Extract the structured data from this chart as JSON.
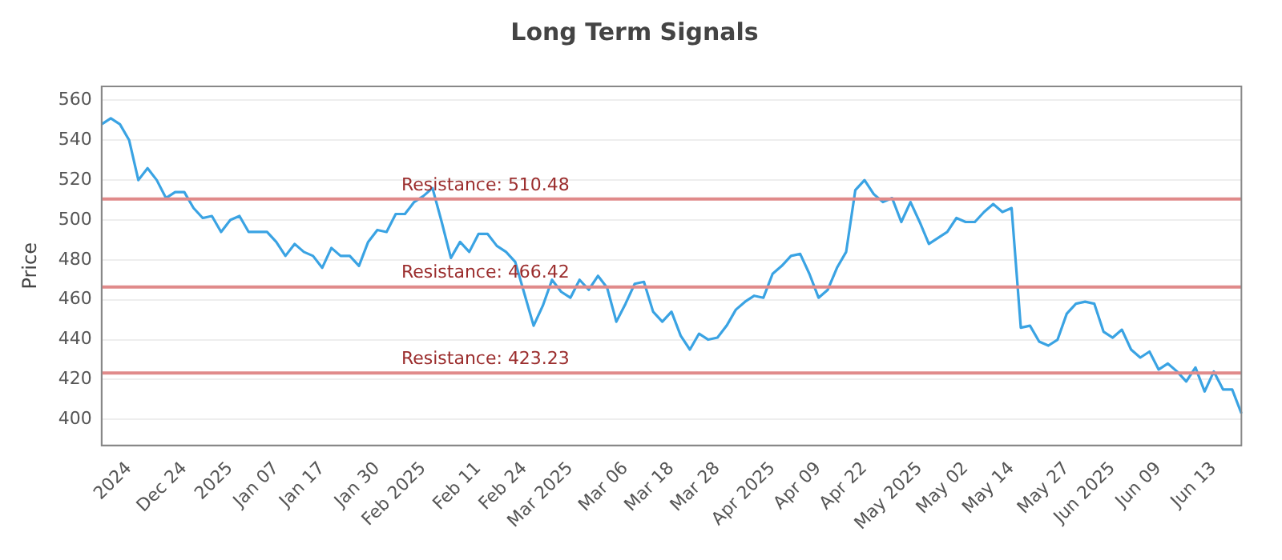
{
  "chart_data": {
    "type": "line",
    "title": "Long Term Signals",
    "ylabel": "Price",
    "categories": [
      null,
      null,
      null,
      "2024",
      null,
      null,
      null,
      null,
      null,
      "Dec 24",
      null,
      null,
      null,
      null,
      "2025",
      null,
      null,
      null,
      null,
      "Jan 07",
      null,
      null,
      null,
      null,
      "Jan 17",
      null,
      null,
      null,
      null,
      null,
      "Jan 30",
      null,
      null,
      null,
      null,
      "Feb 2025",
      null,
      null,
      null,
      null,
      null,
      "Feb 11",
      null,
      null,
      null,
      null,
      "Feb 24",
      null,
      null,
      null,
      null,
      "Mar 2025",
      null,
      null,
      null,
      null,
      null,
      "Mar 06",
      null,
      null,
      null,
      null,
      "Mar 18",
      null,
      null,
      null,
      null,
      "Mar 28",
      null,
      null,
      null,
      null,
      null,
      "Apr 2025",
      null,
      null,
      null,
      null,
      "Apr 09",
      null,
      null,
      null,
      null,
      "Apr 22",
      null,
      null,
      null,
      null,
      null,
      "May 2025",
      null,
      null,
      null,
      null,
      "May 02",
      null,
      null,
      null,
      null,
      "May 14",
      null,
      null,
      null,
      null,
      null,
      "May 27",
      null,
      null,
      null,
      null,
      "Jun 2025",
      null,
      null,
      null,
      null,
      "Jun 09",
      null,
      null,
      null,
      null,
      null,
      "Jun 13",
      null,
      null,
      null
    ],
    "series": [
      {
        "color": "#3aa3e3",
        "values": [
          548,
          551,
          548,
          540,
          520,
          526,
          520,
          511,
          514,
          514,
          506,
          501,
          502,
          494,
          500,
          502,
          494,
          494,
          494,
          489,
          482,
          488,
          484,
          482,
          476,
          486,
          482,
          482,
          477,
          489,
          495,
          494,
          503,
          503,
          509,
          512,
          516,
          499,
          481,
          489,
          484,
          493,
          493,
          487,
          484,
          479,
          463,
          447,
          457,
          470,
          464,
          461,
          470,
          465,
          472,
          466,
          449,
          458,
          468,
          469,
          454,
          449,
          454,
          442,
          435,
          443,
          440,
          441,
          447,
          455,
          459,
          462,
          461,
          473,
          477,
          482,
          483,
          473,
          461,
          465,
          476,
          484,
          515,
          520,
          513,
          509,
          511,
          499,
          509,
          499,
          488,
          491,
          494,
          501,
          499,
          499,
          504,
          508,
          504,
          506,
          446,
          447,
          439,
          437,
          440,
          453,
          458,
          459,
          458,
          444,
          441,
          445,
          435,
          431,
          434,
          425,
          428,
          424,
          419,
          426,
          414,
          424,
          415,
          415,
          403
        ]
      }
    ],
    "ylim": [
      387,
      567
    ],
    "yticks": [
      400,
      420,
      440,
      460,
      480,
      500,
      520,
      540,
      560
    ],
    "grid": "y",
    "legend": false,
    "marker": "none",
    "line_style": "solid",
    "ref_lines": [
      {
        "axis": "y",
        "value": 510.48,
        "label": "Resistance: 510.48",
        "color": "#e08a8a"
      },
      {
        "axis": "y",
        "value": 466.42,
        "label": "Resistance: 466.42",
        "color": "#e08a8a"
      },
      {
        "axis": "y",
        "value": 423.23,
        "label": "Resistance: 423.23",
        "color": "#e08a8a"
      }
    ]
  }
}
